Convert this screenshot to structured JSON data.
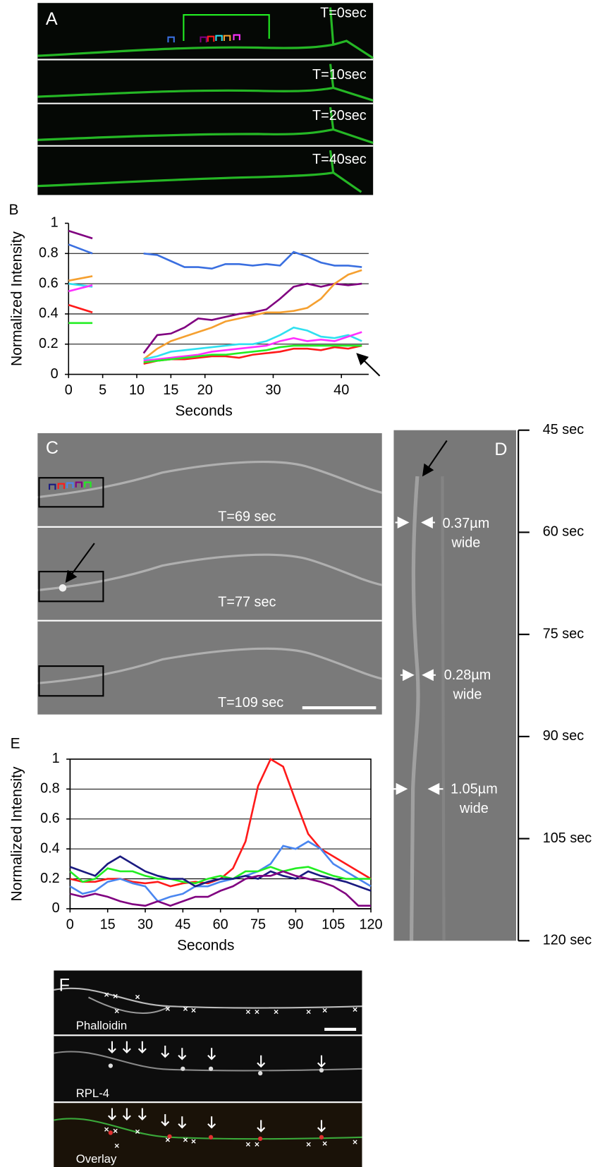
{
  "chart_data": [
    {
      "type": "line",
      "panel": "B",
      "y_label": "Normalized Intensity",
      "x_label": "Seconds",
      "x": [
        0,
        3.5,
        7,
        11,
        13,
        15,
        17,
        19,
        21,
        23,
        25,
        27,
        29,
        31,
        33,
        35,
        37,
        39,
        41,
        43
      ],
      "xlim": [
        0,
        44
      ],
      "xticks": [
        0,
        5,
        10,
        15,
        20,
        30,
        40
      ],
      "ylim": [
        0,
        1
      ],
      "yticks": [
        0,
        0.2,
        0.4,
        0.6,
        0.8,
        1
      ],
      "grid": true,
      "frame": false,
      "series": [
        {
          "color": "#800080",
          "values": [
            0.95,
            0.9,
            null,
            0.14,
            0.26,
            0.27,
            0.31,
            0.37,
            0.36,
            0.38,
            0.4,
            0.41,
            0.43,
            0.5,
            0.58,
            0.6,
            0.58,
            0.6,
            0.59,
            0.6
          ]
        },
        {
          "color": "#3a6fe0",
          "values": [
            0.86,
            0.8,
            null,
            0.8,
            0.79,
            0.75,
            0.71,
            0.71,
            0.7,
            0.73,
            0.73,
            0.72,
            0.73,
            0.72,
            0.81,
            0.78,
            0.74,
            0.72,
            0.72,
            0.71
          ]
        },
        {
          "color": "#f5a030",
          "values": [
            0.62,
            0.65,
            null,
            0.1,
            0.17,
            0.22,
            0.25,
            0.28,
            0.31,
            0.35,
            0.37,
            0.39,
            0.41,
            0.41,
            0.42,
            0.44,
            0.5,
            0.6,
            0.66,
            0.69
          ]
        },
        {
          "color": "#30e0f0",
          "values": [
            0.6,
            0.58,
            null,
            0.1,
            0.12,
            0.15,
            0.16,
            0.17,
            0.18,
            0.19,
            0.2,
            0.2,
            0.22,
            0.26,
            0.31,
            0.29,
            0.25,
            0.24,
            0.26,
            0.22
          ]
        },
        {
          "color": "#ff30ff",
          "values": [
            0.55,
            0.59,
            null,
            0.09,
            0.1,
            0.11,
            0.12,
            0.13,
            0.15,
            0.16,
            0.17,
            0.18,
            0.19,
            0.22,
            0.24,
            0.22,
            0.23,
            0.22,
            0.25,
            0.28
          ]
        },
        {
          "color": "#ff1a1a",
          "values": [
            0.46,
            0.41,
            null,
            0.07,
            0.09,
            0.1,
            0.1,
            0.11,
            0.12,
            0.12,
            0.11,
            0.13,
            0.14,
            0.15,
            0.17,
            0.17,
            0.16,
            0.18,
            0.17,
            0.19
          ]
        },
        {
          "color": "#22ee22",
          "values": [
            0.34,
            0.34,
            null,
            0.08,
            0.09,
            0.1,
            0.11,
            0.12,
            0.13,
            0.13,
            0.14,
            0.15,
            0.16,
            0.18,
            0.19,
            0.19,
            0.19,
            0.19,
            0.19,
            0.19
          ]
        }
      ]
    },
    {
      "type": "line",
      "panel": "E",
      "y_label": "Normalized Intensity",
      "x_label": "Seconds",
      "x": [
        0,
        5,
        10,
        15,
        20,
        25,
        30,
        35,
        40,
        45,
        50,
        55,
        60,
        65,
        70,
        75,
        80,
        85,
        90,
        95,
        100,
        105,
        110,
        115,
        120
      ],
      "xlim": [
        0,
        120
      ],
      "xticks": [
        0,
        15,
        30,
        45,
        60,
        75,
        90,
        105,
        120
      ],
      "ylim": [
        0,
        1
      ],
      "yticks": [
        0,
        0.2,
        0.4,
        0.6,
        0.8,
        1
      ],
      "grid": true,
      "frame": true,
      "series": [
        {
          "color": "#ff1a1a",
          "values": [
            0.2,
            0.18,
            0.18,
            0.2,
            0.2,
            0.18,
            0.17,
            0.18,
            0.15,
            0.17,
            0.18,
            0.17,
            0.2,
            0.27,
            0.45,
            0.82,
            1.0,
            0.95,
            0.72,
            0.5,
            0.4,
            0.35,
            0.3,
            0.25,
            0.2
          ]
        },
        {
          "color": "#4a86f0",
          "values": [
            0.15,
            0.1,
            0.12,
            0.18,
            0.2,
            0.17,
            0.15,
            0.05,
            0.08,
            0.1,
            0.15,
            0.15,
            0.18,
            0.2,
            0.22,
            0.25,
            0.3,
            0.42,
            0.4,
            0.45,
            0.4,
            0.3,
            0.25,
            0.2,
            0.15
          ]
        },
        {
          "color": "#22ee22",
          "values": [
            0.25,
            0.18,
            0.2,
            0.27,
            0.25,
            0.25,
            0.22,
            0.2,
            0.2,
            0.18,
            0.17,
            0.2,
            0.22,
            0.2,
            0.25,
            0.25,
            0.28,
            0.25,
            0.27,
            0.28,
            0.25,
            0.22,
            0.2,
            0.2,
            0.2
          ]
        },
        {
          "color": "#1a1a80",
          "values": [
            0.28,
            0.25,
            0.22,
            0.3,
            0.35,
            0.3,
            0.25,
            0.22,
            0.2,
            0.2,
            0.15,
            0.18,
            0.2,
            0.2,
            0.22,
            0.2,
            0.25,
            0.22,
            0.2,
            0.25,
            0.22,
            0.2,
            0.18,
            0.15,
            0.12
          ]
        },
        {
          "color": "#800080",
          "values": [
            0.1,
            0.08,
            0.1,
            0.08,
            0.05,
            0.03,
            0.02,
            0.05,
            0.02,
            0.05,
            0.08,
            0.08,
            0.12,
            0.15,
            0.2,
            0.22,
            0.22,
            0.25,
            0.22,
            0.2,
            0.18,
            0.15,
            0.1,
            0.02,
            0.02
          ]
        }
      ]
    }
  ],
  "panels": {
    "A": {
      "letter": "A",
      "times": [
        "T=0sec",
        "T=10sec",
        "T=20sec",
        "T=40sec"
      ]
    },
    "C": {
      "letter": "C",
      "times": [
        "T=69 sec",
        "T=77 sec",
        "T=109 sec"
      ]
    },
    "D": {
      "letter": "D",
      "time_labels": [
        "45 sec",
        "60 sec",
        "75 sec",
        "90 sec",
        "105 sec",
        "120 sec"
      ],
      "widths": [
        [
          "0.37µm",
          "wide"
        ],
        [
          "0.28µm",
          "wide"
        ],
        [
          "1.05µm",
          "wide"
        ]
      ]
    },
    "F": {
      "letter": "F",
      "stains": [
        "Phalloidin",
        "RPL-4",
        "Overlay"
      ]
    }
  }
}
